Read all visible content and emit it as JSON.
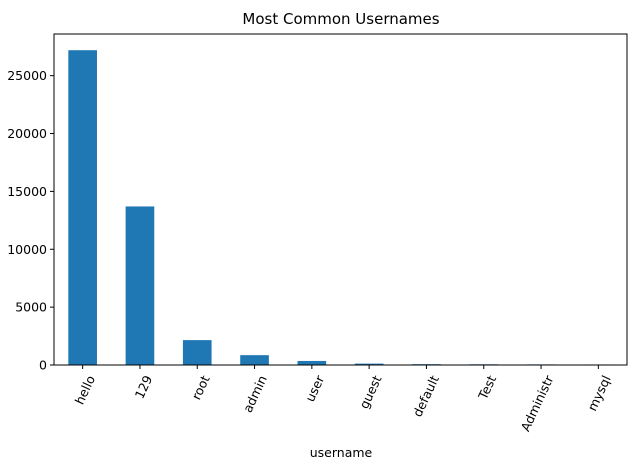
{
  "chart_data": {
    "type": "bar",
    "title": "Most Common Usernames",
    "xlabel": "username",
    "ylabel": "",
    "categories": [
      "hello",
      "129",
      "root",
      "admin",
      "user",
      "guest",
      "default",
      "Test",
      "Administr",
      "mysql"
    ],
    "values": [
      27200,
      13700,
      2150,
      850,
      350,
      120,
      70,
      60,
      50,
      45
    ],
    "yticks": [
      0,
      5000,
      10000,
      15000,
      20000,
      25000
    ],
    "ylim": [
      0,
      28600
    ],
    "grid": false,
    "bar_color": "#1f77b4"
  }
}
